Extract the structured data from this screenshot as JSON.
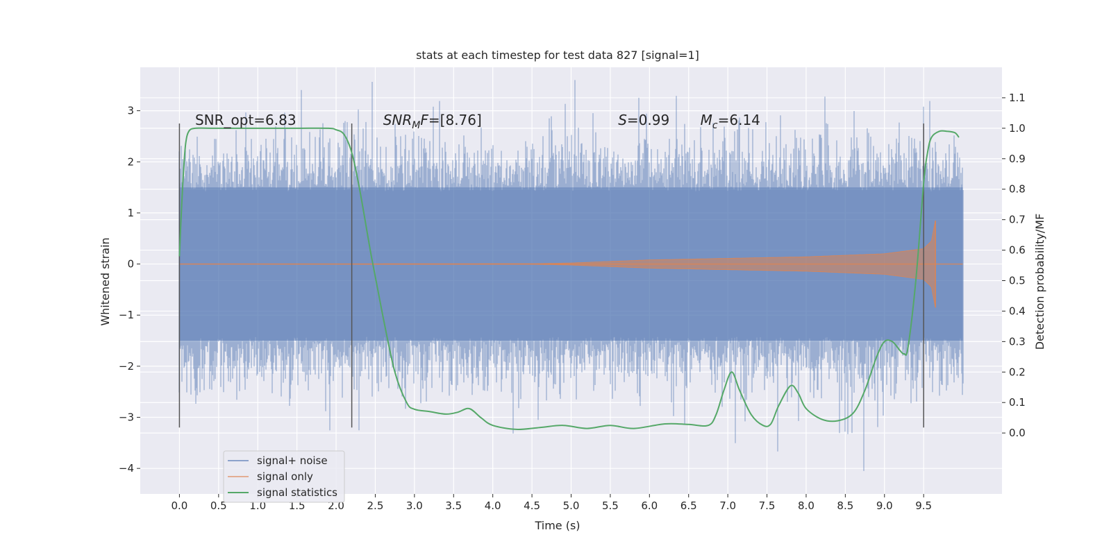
{
  "chart_data": {
    "type": "line",
    "title": "stats at each timestep for test data 827 [signal=1]",
    "xlabel": "Time (s)",
    "ylabel_left": "Whitened strain",
    "ylabel_right": "Detection probability/MF",
    "xlim": [
      -0.5,
      10.5
    ],
    "ylim_left": [
      -4.5,
      3.85
    ],
    "ylim_right": [
      -0.2,
      1.2
    ],
    "x_ticks": [
      0.0,
      0.5,
      1.0,
      1.5,
      2.0,
      2.5,
      3.0,
      3.5,
      4.0,
      4.5,
      5.0,
      5.5,
      6.0,
      6.5,
      7.0,
      7.5,
      8.0,
      8.5,
      9.0,
      9.5
    ],
    "x_tick_labels": [
      "0.0",
      "0.5",
      "1.0",
      "1.5",
      "2.0",
      "2.5",
      "3.0",
      "3.5",
      "4.0",
      "4.5",
      "5.0",
      "5.5",
      "6.0",
      "6.5",
      "7.0",
      "7.5",
      "8.0",
      "8.5",
      "9.0",
      "9.5"
    ],
    "y_left_ticks": [
      3,
      2,
      1,
      0,
      -1,
      -2,
      -3,
      -4
    ],
    "y_left_tick_labels": [
      "3",
      "2",
      "1",
      "0",
      "−1",
      "−2",
      "−3",
      "−4"
    ],
    "y_right_ticks": [
      1.1,
      1.0,
      0.9,
      0.8,
      0.7,
      0.6,
      0.5,
      0.4,
      0.3,
      0.2,
      0.1,
      0.0
    ],
    "y_right_tick_labels": [
      "1.1",
      "1.0",
      "0.9",
      "0.8",
      "0.7",
      "0.6",
      "0.5",
      "0.4",
      "0.3",
      "0.2",
      "0.1",
      "0.0"
    ],
    "grid": true,
    "legend_position": "lower-left",
    "background": "#eaeaf2",
    "series": [
      {
        "name": "signal+ noise",
        "color": "#4c72b0",
        "axis": "left",
        "x_range": [
          0.0,
          10.0
        ],
        "envelope_core": 1.5,
        "peak_min": -4.05,
        "peak_max": 3.6
      },
      {
        "name": "signal only",
        "color": "#dd8452",
        "axis": "left",
        "x_range": [
          0.0,
          10.0
        ],
        "merger_time": 9.65,
        "peak_amplitude": 0.85,
        "envelope": {
          "x": [
            0.0,
            4.5,
            5.0,
            6.0,
            7.0,
            8.0,
            9.0,
            9.5,
            9.6,
            9.65
          ],
          "amp": [
            0.0,
            0.005,
            0.02,
            0.08,
            0.11,
            0.14,
            0.2,
            0.3,
            0.45,
            0.85
          ]
        }
      },
      {
        "name": "signal statistics",
        "color": "#55a868",
        "axis": "right",
        "x": [
          0.0,
          0.02,
          0.05,
          0.08,
          0.12,
          0.2,
          0.4,
          1.0,
          1.5,
          1.9,
          2.0,
          2.1,
          2.2,
          2.3,
          2.45,
          2.6,
          2.75,
          2.9,
          3.0,
          3.2,
          3.4,
          3.55,
          3.7,
          3.85,
          4.0,
          4.3,
          4.6,
          4.9,
          5.2,
          5.5,
          5.8,
          6.2,
          6.5,
          6.75,
          6.85,
          6.95,
          7.05,
          7.15,
          7.3,
          7.45,
          7.55,
          7.65,
          7.8,
          7.9,
          8.0,
          8.2,
          8.4,
          8.6,
          8.75,
          8.9,
          9.0,
          9.1,
          9.2,
          9.25,
          9.3,
          9.4,
          9.5,
          9.55,
          9.6,
          9.7,
          9.8,
          9.9,
          9.95
        ],
        "y": [
          0.58,
          0.7,
          0.85,
          0.95,
          0.99,
          1.0,
          1.0,
          1.0,
          1.0,
          1.0,
          0.995,
          0.98,
          0.92,
          0.8,
          0.58,
          0.38,
          0.2,
          0.1,
          0.078,
          0.07,
          0.062,
          0.068,
          0.08,
          0.05,
          0.025,
          0.012,
          0.018,
          0.025,
          0.015,
          0.025,
          0.015,
          0.03,
          0.028,
          0.025,
          0.06,
          0.14,
          0.2,
          0.14,
          0.06,
          0.025,
          0.03,
          0.09,
          0.155,
          0.13,
          0.08,
          0.045,
          0.04,
          0.065,
          0.14,
          0.25,
          0.3,
          0.3,
          0.27,
          0.26,
          0.28,
          0.5,
          0.82,
          0.92,
          0.97,
          0.99,
          0.99,
          0.985,
          0.97
        ]
      }
    ],
    "vertical_lines": [
      {
        "x": 0.0,
        "y_range": [
          -3.2,
          2.75
        ]
      },
      {
        "x": 2.2,
        "y_range": [
          -3.2,
          2.75
        ]
      },
      {
        "x": 9.5,
        "y_range": [
          -3.2,
          2.75
        ]
      }
    ],
    "annotations": [
      {
        "x": 0.2,
        "y": 2.75,
        "text": "SNR_opt=6.83"
      },
      {
        "x": 2.6,
        "y": 2.75,
        "text": "SNR_MF=[8.76]",
        "italic_base": "SNR",
        "sub": "M",
        "tail": "F=[8.76]"
      },
      {
        "x": 5.6,
        "y": 2.75,
        "text": "S=0.99",
        "italic_base": "S",
        "tail": "=0.99"
      },
      {
        "x": 6.65,
        "y": 2.75,
        "text": "M_c=6.14",
        "italic_base": "M",
        "sub": "c",
        "tail": "=6.14"
      }
    ]
  }
}
